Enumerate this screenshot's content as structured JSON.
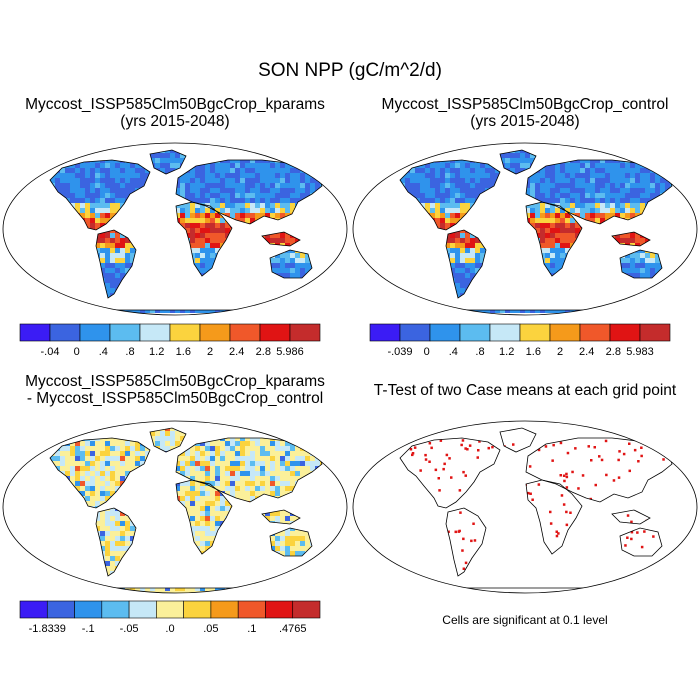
{
  "main_title": "SON NPP (gC/m^2/d)",
  "panels": [
    {
      "title": "Myccost_ISSP585Clm50BgcCrop_kparams",
      "subtitle": "(yrs 2015-2048)"
    },
    {
      "title": "Myccost_ISSP585Clm50BgcCrop_control",
      "subtitle": "(yrs 2015-2048)"
    },
    {
      "title": "Myccost_ISSP585Clm50BgcCrop_kparams",
      "subtitle": "- Myccost_ISSP585Clm50BgcCrop_control"
    },
    {
      "title": "T-Test of two Case means at each grid point",
      "subtitle": ""
    }
  ],
  "significance_note": "Cells are significant at 0.1 level",
  "chart_data": [
    {
      "type": "heatmap",
      "title": "Myccost_ISSP585Clm50BgcCrop_kparams",
      "subtitle": "(yrs 2015-2048)",
      "colorbar": {
        "tick_labels": [
          "-.04",
          "0",
          ".4",
          ".8",
          "1.2",
          "1.6",
          "2",
          "2.4",
          "2.8",
          "5.986"
        ],
        "colors": [
          "#3b1cf5",
          "#3b64e0",
          "#2f93ec",
          "#5cbcf0",
          "#c6e8f7",
          "#fbd33e",
          "#f59a1b",
          "#f0582a",
          "#e01414",
          "#c42c2c"
        ]
      }
    },
    {
      "type": "heatmap",
      "title": "Myccost_ISSP585Clm50BgcCrop_control",
      "subtitle": "(yrs 2015-2048)",
      "colorbar": {
        "tick_labels": [
          "-.039",
          "0",
          ".4",
          ".8",
          "1.2",
          "1.6",
          "2",
          "2.4",
          "2.8",
          "5.983"
        ],
        "colors": [
          "#3b1cf5",
          "#3b64e0",
          "#2f93ec",
          "#5cbcf0",
          "#c6e8f7",
          "#fbd33e",
          "#f59a1b",
          "#f0582a",
          "#e01414",
          "#c42c2c"
        ]
      }
    },
    {
      "type": "heatmap",
      "title": "Myccost_ISSP585Clm50BgcCrop_kparams",
      "subtitle": "- Myccost_ISSP585Clm50BgcCrop_control",
      "colorbar": {
        "tick_labels": [
          "-1.8339",
          "-.1",
          "-.05",
          ".0",
          ".05",
          ".1",
          ".4765"
        ],
        "colors": [
          "#3b1cf5",
          "#3b64e0",
          "#2f93ec",
          "#5cbcf0",
          "#c6e8f7",
          "#fbf09a",
          "#fbd33e",
          "#f59a1b",
          "#f0582a",
          "#e01414",
          "#c42c2c"
        ]
      }
    },
    {
      "type": "heatmap",
      "title": "T-Test of two Case means at each grid point",
      "significance_color": "#e01414",
      "note": "Cells are significant at 0.1 level"
    }
  ]
}
